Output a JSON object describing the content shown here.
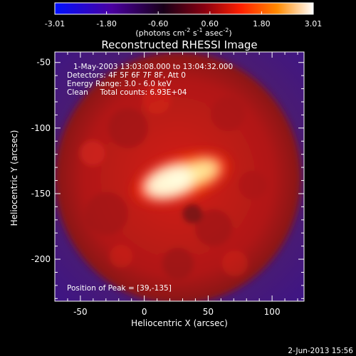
{
  "chart_data": [
    {
      "type": "colorbar",
      "ticks": [
        "-3.01",
        "-1.80",
        "-0.60",
        "0.60",
        "1.80",
        "3.01"
      ],
      "range": [
        -3.01,
        3.01
      ],
      "unit_label": {
        "main": "(photons cm",
        "sup1": "-2",
        "mid1": " s",
        "sup2": "-1",
        "mid2": " asec",
        "sup3": "-2",
        "end": ")"
      },
      "colormap": [
        "#0010ff",
        "#4a00a0",
        "#180018",
        "#8a0010",
        "#ff2000",
        "#ff8a00",
        "#ffffff"
      ]
    },
    {
      "type": "heatmap",
      "title": "Reconstructed RHESSI Image",
      "xlabel": "Heliocentric X (arcsec)",
      "ylabel": "Heliocentric Y (arcsec)",
      "xlim": [
        -70,
        125
      ],
      "ylim": [
        -232,
        -42
      ],
      "x_ticks": [
        "-50",
        "0",
        "50",
        "100"
      ],
      "y_ticks": [
        "-50",
        "-100",
        "-150",
        "-200"
      ],
      "x_tick_values": [
        -50,
        0,
        50,
        100
      ],
      "y_tick_values": [
        -50,
        -100,
        -150,
        -200
      ],
      "annotations": [
        "1-May-2003 13:03:08.000 to 13:04:32.000",
        "Detectors: 4F 5F 6F 7F 8F, Att 0",
        "Energy Range: 3.0 - 6.0 keV",
        "Clean     Total counts: 6.93E+04"
      ],
      "peak_text": "Position of Peak = [39,-135]",
      "peak": [
        39,
        -135
      ],
      "background_color": "#4a1a78",
      "disk_color": "#c61a1a",
      "source_color": "#fff8c0"
    }
  ],
  "footer": {
    "date": "2-Jun-2013 15:56"
  }
}
